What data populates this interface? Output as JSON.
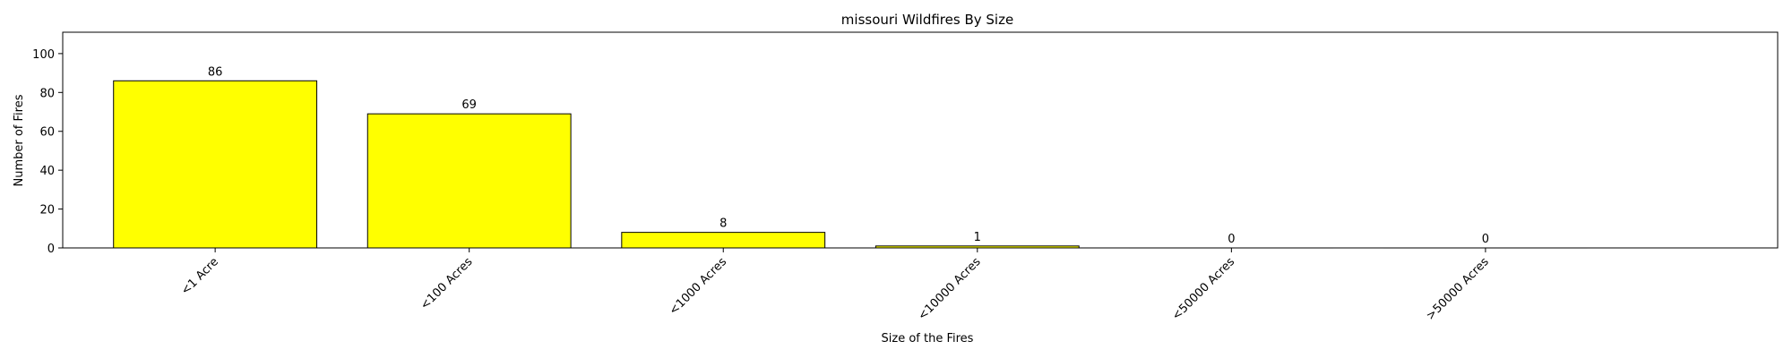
{
  "chart_data": {
    "type": "bar",
    "title": "missouri Wildfires By Size",
    "xlabel": "Size of the Fires",
    "ylabel": "Number of Fires",
    "categories": [
      "<1 Acre",
      "<100 Acres",
      "<1000 Acres",
      "<10000 Acres",
      "<50000 Acres",
      ">50000 Acres"
    ],
    "values": [
      86,
      69,
      8,
      1,
      0,
      0
    ],
    "ylim": [
      0,
      111
    ],
    "yticks": [
      0,
      20,
      40,
      60,
      80,
      100
    ],
    "grid": false,
    "bar_color": "#ffff00",
    "bar_edge_color": "#000000"
  }
}
